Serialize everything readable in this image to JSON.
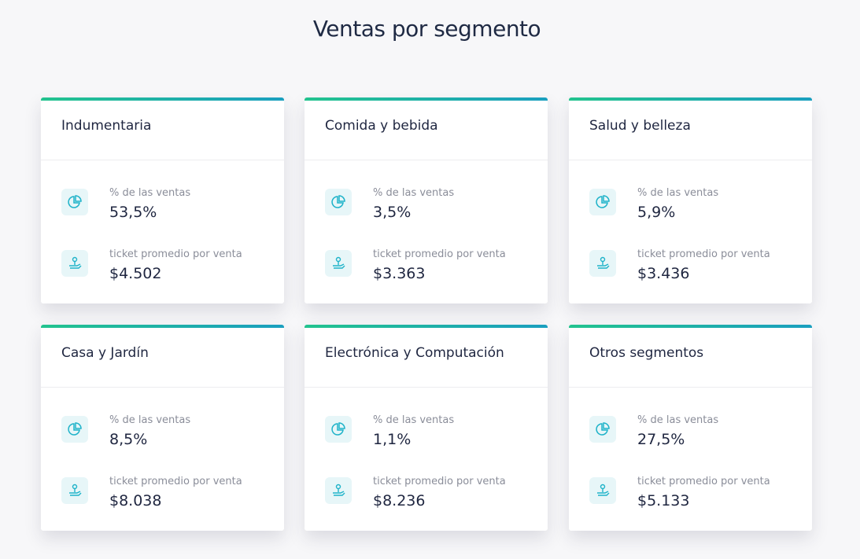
{
  "page_title": "Ventas por segmento",
  "colors": {
    "bar_start": "#22c38e",
    "bar_end": "#1a9fbf",
    "icon": "#1fb3c9",
    "icon_bg": "#e7f6f8"
  },
  "labels": {
    "pct": "% de las ventas",
    "ticket": "ticket promedio por venta"
  },
  "icons": {
    "pct": "pie-chart-icon",
    "ticket": "hand-money-icon"
  },
  "segments": [
    {
      "name": "Indumentaria",
      "pct": "53,5%",
      "ticket": "$4.502"
    },
    {
      "name": "Comida y bebida",
      "pct": "3,5%",
      "ticket": "$3.363"
    },
    {
      "name": "Salud y belleza",
      "pct": "5,9%",
      "ticket": "$3.436"
    },
    {
      "name": "Casa y Jardín",
      "pct": "8,5%",
      "ticket": "$8.038"
    },
    {
      "name": "Electrónica y Computación",
      "pct": "1,1%",
      "ticket": "$8.236"
    },
    {
      "name": "Otros segmentos",
      "pct": "27,5%",
      "ticket": "$5.133"
    }
  ]
}
